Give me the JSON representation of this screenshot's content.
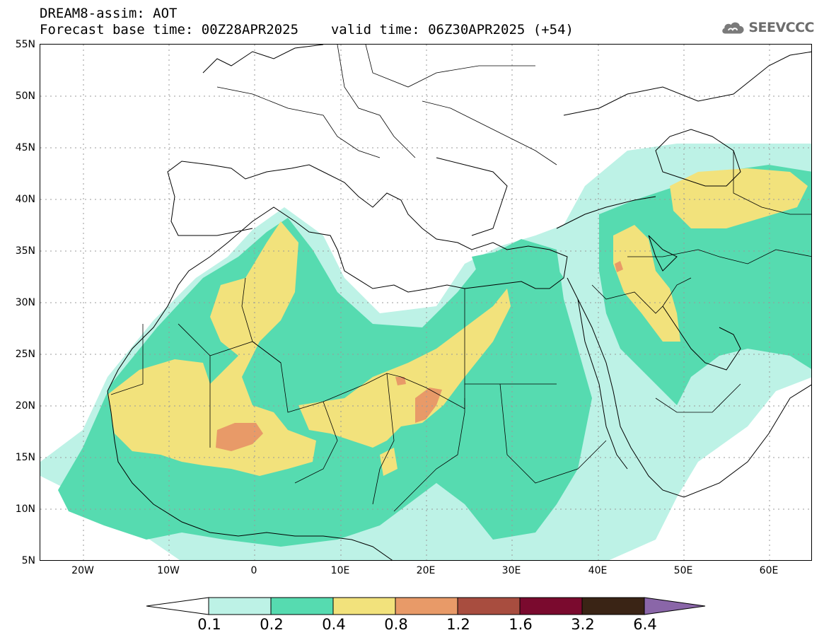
{
  "header": {
    "title": "DREAM8-assim: AOT",
    "base_time": "Forecast base time: 00Z28APR2025",
    "valid_time": "valid time: 06Z30APR2025 (+54)"
  },
  "logo": {
    "text": "SEEVCCC",
    "icon": "cloud-icon"
  },
  "map": {
    "lat_labels": [
      "55N",
      "50N",
      "45N",
      "40N",
      "35N",
      "30N",
      "25N",
      "20N",
      "15N",
      "10N",
      "5N"
    ],
    "lon_labels": [
      "20W",
      "10W",
      "0",
      "10E",
      "20E",
      "30E",
      "40E",
      "50E",
      "60E"
    ],
    "extent": {
      "lon_min": -25,
      "lon_max": 65,
      "lat_min": 5,
      "lat_max": 55
    },
    "grid": "dotted"
  },
  "legend": {
    "variable": "AOT",
    "levels": [
      "0.1",
      "0.2",
      "0.4",
      "0.8",
      "1.2",
      "1.6",
      "3.2",
      "6.4"
    ],
    "colors": [
      "#bdf2e6",
      "#56dbb0",
      "#f2e27c",
      "#e89a68",
      "#a84d3f",
      "#7a0a2e",
      "#3a2415",
      "#8a66a8"
    ],
    "below_min_color": "#ffffff"
  }
}
